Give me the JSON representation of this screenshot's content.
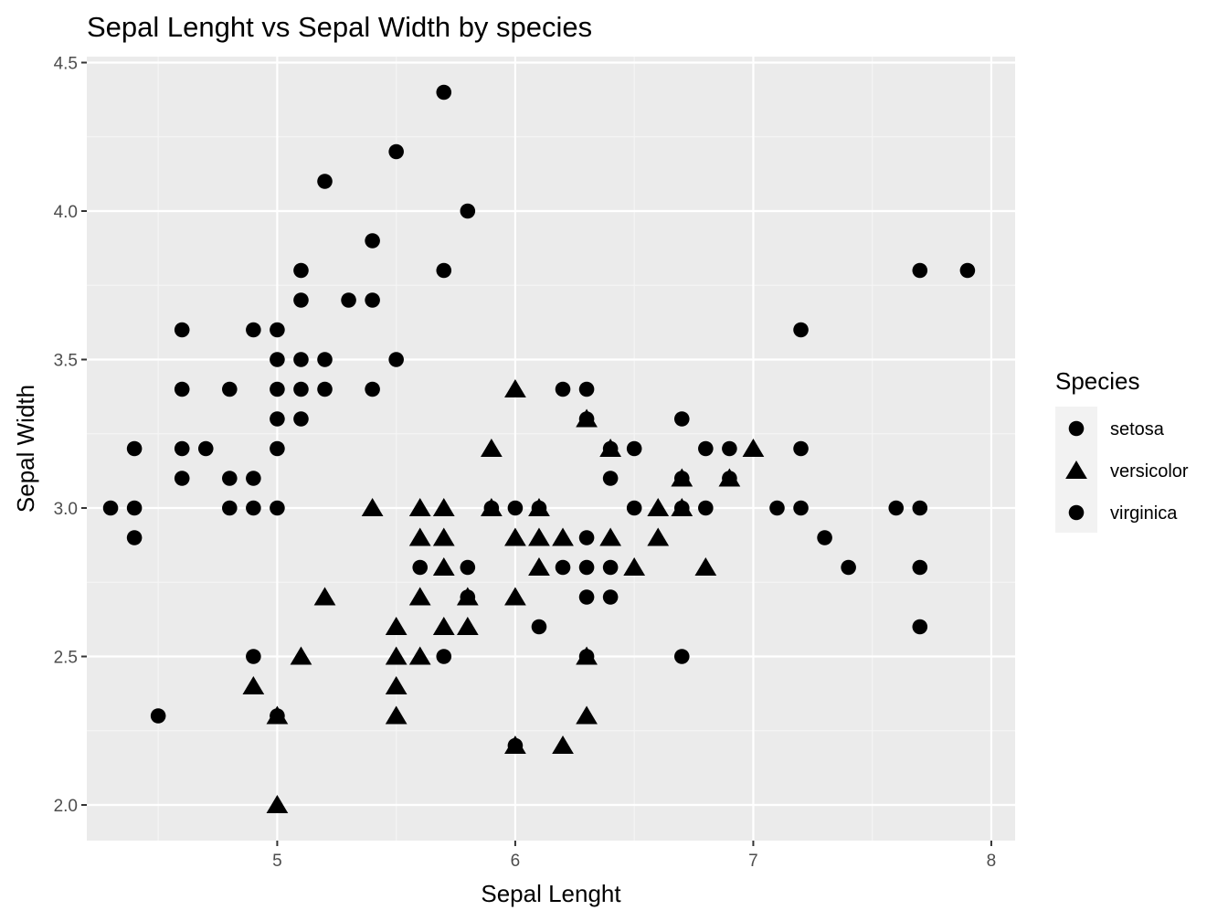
{
  "colors": {
    "panel_background": "#ebebeb",
    "grid_major": "#ffffff",
    "grid_minor": "#f5f5f5",
    "point": "#000000",
    "legend_key_background": "#f2f2f2"
  },
  "chart_data": {
    "type": "scatter",
    "title": "Sepal Lenght vs Sepal Width by species",
    "xlabel": "Sepal Lenght",
    "ylabel": "Sepal Width",
    "xlim": [
      4.2,
      8.1
    ],
    "ylim": [
      1.88,
      4.52
    ],
    "x_ticks": [
      5,
      6,
      7,
      8
    ],
    "x_tick_labels": [
      "5",
      "6",
      "7",
      "8"
    ],
    "y_ticks": [
      2.0,
      2.5,
      3.0,
      3.5,
      4.0,
      4.5
    ],
    "y_tick_labels": [
      "2.0",
      "2.5",
      "3.0",
      "3.5",
      "4.0",
      "4.5"
    ],
    "grid": true,
    "legend": {
      "title": "Species",
      "position": "right",
      "entries": [
        {
          "label": "setosa",
          "shape": "circle"
        },
        {
          "label": "versicolor",
          "shape": "triangle"
        },
        {
          "label": "virginica",
          "shape": "circle"
        }
      ]
    },
    "series": [
      {
        "name": "setosa",
        "shape": "circle",
        "points": [
          [
            5.7,
            4.4
          ],
          [
            5.5,
            4.2
          ],
          [
            5.2,
            4.1
          ],
          [
            5.8,
            4.0
          ],
          [
            5.4,
            3.9
          ],
          [
            5.1,
            3.8
          ],
          [
            5.7,
            3.8
          ],
          [
            5.1,
            3.7
          ],
          [
            5.3,
            3.7
          ],
          [
            5.4,
            3.7
          ],
          [
            4.6,
            3.6
          ],
          [
            4.9,
            3.6
          ],
          [
            5.0,
            3.6
          ],
          [
            5.0,
            3.5
          ],
          [
            5.1,
            3.5
          ],
          [
            5.2,
            3.5
          ],
          [
            5.5,
            3.5
          ],
          [
            4.6,
            3.4
          ],
          [
            4.8,
            3.4
          ],
          [
            5.0,
            3.4
          ],
          [
            5.1,
            3.4
          ],
          [
            5.2,
            3.4
          ],
          [
            5.4,
            3.4
          ],
          [
            5.0,
            3.3
          ],
          [
            5.1,
            3.3
          ],
          [
            4.4,
            3.2
          ],
          [
            4.6,
            3.2
          ],
          [
            4.7,
            3.2
          ],
          [
            5.0,
            3.2
          ],
          [
            4.6,
            3.1
          ],
          [
            4.8,
            3.1
          ],
          [
            4.9,
            3.1
          ],
          [
            4.3,
            3.0
          ],
          [
            4.4,
            3.0
          ],
          [
            4.8,
            3.0
          ],
          [
            4.9,
            3.0
          ],
          [
            5.0,
            3.0
          ],
          [
            4.4,
            2.9
          ],
          [
            4.5,
            2.3
          ],
          [
            5.0,
            2.3
          ]
        ]
      },
      {
        "name": "versicolor",
        "shape": "triangle",
        "points": [
          [
            6.0,
            3.4
          ],
          [
            6.3,
            3.3
          ],
          [
            5.9,
            3.2
          ],
          [
            6.4,
            3.2
          ],
          [
            7.0,
            3.2
          ],
          [
            6.7,
            3.1
          ],
          [
            6.9,
            3.1
          ],
          [
            5.4,
            3.0
          ],
          [
            5.6,
            3.0
          ],
          [
            5.7,
            3.0
          ],
          [
            5.9,
            3.0
          ],
          [
            6.1,
            3.0
          ],
          [
            6.6,
            3.0
          ],
          [
            6.7,
            3.0
          ],
          [
            5.6,
            2.9
          ],
          [
            5.7,
            2.9
          ],
          [
            6.0,
            2.9
          ],
          [
            6.1,
            2.9
          ],
          [
            6.2,
            2.9
          ],
          [
            6.4,
            2.9
          ],
          [
            6.6,
            2.9
          ],
          [
            5.7,
            2.8
          ],
          [
            6.1,
            2.8
          ],
          [
            6.5,
            2.8
          ],
          [
            6.8,
            2.8
          ],
          [
            5.2,
            2.7
          ],
          [
            5.6,
            2.7
          ],
          [
            5.8,
            2.7
          ],
          [
            6.0,
            2.7
          ],
          [
            5.5,
            2.6
          ],
          [
            5.7,
            2.6
          ],
          [
            5.8,
            2.6
          ],
          [
            5.1,
            2.5
          ],
          [
            5.5,
            2.5
          ],
          [
            5.6,
            2.5
          ],
          [
            6.3,
            2.5
          ],
          [
            4.9,
            2.4
          ],
          [
            5.5,
            2.4
          ],
          [
            5.0,
            2.3
          ],
          [
            5.5,
            2.3
          ],
          [
            6.3,
            2.3
          ],
          [
            6.0,
            2.2
          ],
          [
            6.2,
            2.2
          ],
          [
            5.0,
            2.0
          ]
        ]
      },
      {
        "name": "virginica",
        "shape": "circle",
        "points": [
          [
            7.7,
            3.8
          ],
          [
            7.9,
            3.8
          ],
          [
            7.2,
            3.6
          ],
          [
            6.2,
            3.4
          ],
          [
            6.3,
            3.4
          ],
          [
            6.3,
            3.3
          ],
          [
            6.7,
            3.3
          ],
          [
            6.4,
            3.2
          ],
          [
            6.5,
            3.2
          ],
          [
            6.8,
            3.2
          ],
          [
            6.9,
            3.2
          ],
          [
            7.2,
            3.2
          ],
          [
            6.4,
            3.1
          ],
          [
            6.7,
            3.1
          ],
          [
            6.9,
            3.1
          ],
          [
            5.9,
            3.0
          ],
          [
            6.0,
            3.0
          ],
          [
            6.1,
            3.0
          ],
          [
            6.5,
            3.0
          ],
          [
            6.7,
            3.0
          ],
          [
            6.8,
            3.0
          ],
          [
            7.1,
            3.0
          ],
          [
            7.2,
            3.0
          ],
          [
            7.6,
            3.0
          ],
          [
            7.7,
            3.0
          ],
          [
            6.3,
            2.9
          ],
          [
            7.3,
            2.9
          ],
          [
            5.6,
            2.8
          ],
          [
            5.8,
            2.8
          ],
          [
            6.2,
            2.8
          ],
          [
            6.3,
            2.8
          ],
          [
            6.4,
            2.8
          ],
          [
            7.4,
            2.8
          ],
          [
            7.7,
            2.8
          ],
          [
            5.8,
            2.7
          ],
          [
            6.3,
            2.7
          ],
          [
            6.4,
            2.7
          ],
          [
            6.1,
            2.6
          ],
          [
            7.7,
            2.6
          ],
          [
            4.9,
            2.5
          ],
          [
            5.7,
            2.5
          ],
          [
            6.3,
            2.5
          ],
          [
            6.7,
            2.5
          ],
          [
            6.0,
            2.2
          ]
        ]
      }
    ]
  }
}
